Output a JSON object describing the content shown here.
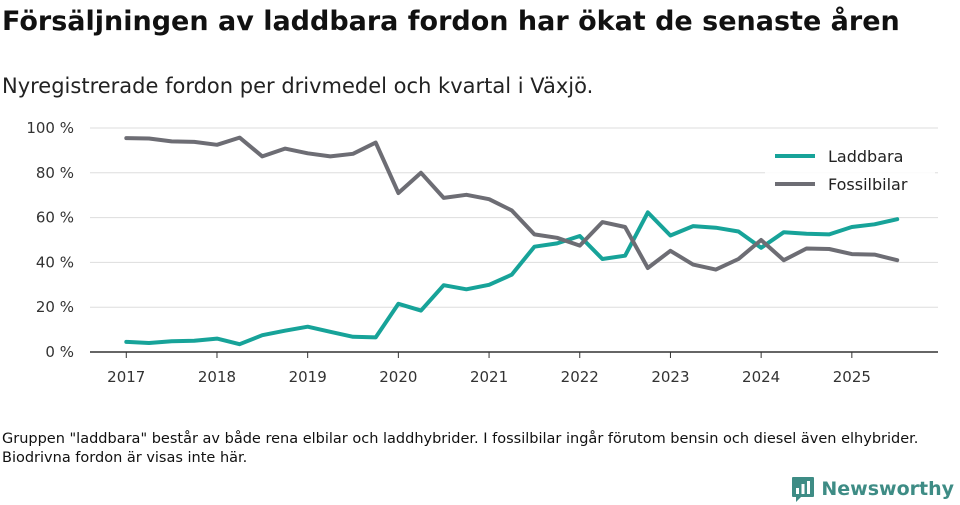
{
  "title": "Försäljningen av laddbara fordon har ökat de senaste åren",
  "subtitle": "Nyregistrerade fordon per drivmedel och kvartal i Växjö.",
  "note": "Gruppen \"laddbara\" består av både rena elbilar och laddhybrider. I fossilbilar ingår förutom bensin och diesel även elhybrider. Biodrivna fordon är visas inte här.",
  "brand": {
    "name": "Newsworthy",
    "icon": "newsworthy-logo-icon",
    "color": "#3e8c85"
  },
  "chart_data": {
    "type": "line",
    "x": [
      2017.0,
      2017.25,
      2017.5,
      2017.75,
      2018.0,
      2018.25,
      2018.5,
      2018.75,
      2019.0,
      2019.25,
      2019.5,
      2019.75,
      2020.0,
      2020.25,
      2020.5,
      2020.75,
      2021.0,
      2021.25,
      2021.5,
      2021.75,
      2022.0,
      2022.25,
      2022.5,
      2022.75,
      2023.0,
      2023.25,
      2023.5,
      2023.75,
      2024.0,
      2024.25,
      2024.5,
      2024.75,
      2025.0,
      2025.25,
      2025.5
    ],
    "series": [
      {
        "name": "Laddbara",
        "color": "#17a399",
        "values": [
          4.5,
          4.0,
          4.8,
          5.0,
          6.0,
          3.5,
          7.5,
          9.5,
          11.3,
          9.0,
          6.8,
          6.5,
          21.5,
          18.5,
          29.8,
          28.0,
          30.0,
          34.5,
          47.0,
          48.5,
          51.8,
          41.5,
          43.0,
          62.3,
          52.0,
          56.2,
          55.5,
          53.8,
          46.5,
          53.5,
          52.8,
          52.5,
          55.8,
          57.0,
          59.3
        ]
      },
      {
        "name": "Fossilbilar",
        "color": "#6d6d74",
        "values": [
          95.5,
          95.3,
          94.0,
          93.8,
          92.5,
          95.7,
          87.3,
          90.8,
          88.7,
          87.3,
          88.5,
          93.5,
          71.0,
          80.0,
          68.8,
          70.2,
          68.2,
          63.2,
          52.5,
          51.0,
          47.5,
          58.0,
          55.8,
          37.5,
          45.2,
          39.0,
          36.8,
          41.5,
          50.0,
          41.0,
          46.2,
          46.0,
          43.7,
          43.5,
          41.0
        ]
      }
    ],
    "xticks": [
      2017,
      2018,
      2019,
      2020,
      2021,
      2022,
      2023,
      2024,
      2025
    ],
    "xtick_labels": [
      "2017",
      "2018",
      "2019",
      "2020",
      "2021",
      "2022",
      "2023",
      "2024",
      "2025"
    ],
    "yticks": [
      0,
      20,
      40,
      60,
      80,
      100
    ],
    "ytick_labels": [
      "0 %",
      "20 %",
      "40 %",
      "60 %",
      "80 %",
      "100 %"
    ],
    "xlim": [
      2016.6,
      2025.95
    ],
    "ylim": [
      0,
      100
    ],
    "grid": "horizontal",
    "legend_position": "top-right",
    "title": "Försäljningen av laddbara fordon har ökat de senaste åren",
    "xlabel": "",
    "ylabel": ""
  }
}
